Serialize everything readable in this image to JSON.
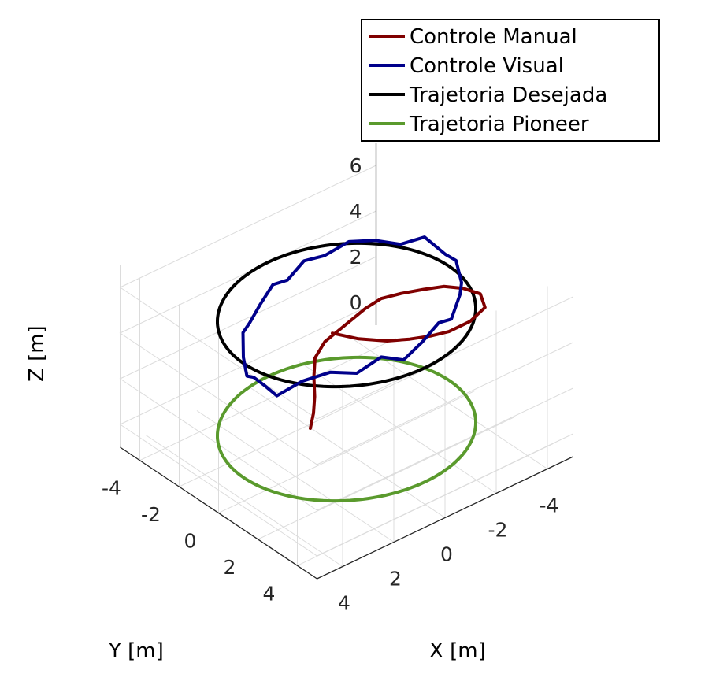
{
  "chart_data": {
    "type": "line3d",
    "title": "",
    "xlabel": "X [m]",
    "ylabel": "Y [m]",
    "zlabel": "Z [m]",
    "x_ticks": [
      "-4",
      "-2",
      "0",
      "2",
      "4"
    ],
    "y_ticks": [
      "-4",
      "-2",
      "0",
      "2",
      "4"
    ],
    "z_ticks": [
      "0",
      "2",
      "4",
      "6"
    ],
    "xlim": [
      -5,
      5
    ],
    "ylim": [
      -5,
      5
    ],
    "zlim": [
      -1,
      7
    ],
    "grid": true,
    "legend_position": "top-right",
    "series": [
      {
        "name": "Controle Manual",
        "color": "#800000",
        "x": [
          0.8,
          0.6,
          0.4,
          0.2,
          0.0,
          -0.3,
          -0.6,
          -0.9,
          -1.2,
          -1.5,
          -1.9,
          -2.4,
          -2.8,
          -3.1,
          -3.3,
          -3.1,
          -2.6,
          -2.0,
          -1.5,
          -1.0,
          -0.5,
          0.0,
          0.3,
          0.4
        ],
        "y": [
          -0.8,
          -0.9,
          -1.1,
          -1.4,
          -1.6,
          -1.5,
          -1.2,
          -0.9,
          -0.6,
          -0.2,
          0.3,
          0.8,
          1.3,
          1.9,
          2.5,
          3.0,
          2.9,
          2.6,
          2.3,
          1.9,
          1.4,
          0.6,
          0.0,
          -0.2
        ],
        "z": [
          0.0,
          0.5,
          1.0,
          1.6,
          2.2,
          2.8,
          3.3,
          3.8,
          4.3,
          4.8,
          5.1,
          5.3,
          5.5,
          5.6,
          5.6,
          5.4,
          5.0,
          4.7,
          4.6,
          4.5,
          4.4,
          4.3,
          4.3,
          4.3
        ]
      },
      {
        "name": "Controle Visual",
        "color": "#00008b",
        "x": [
          3.8,
          3.2,
          2.4,
          1.6,
          0.8,
          0.0,
          -0.8,
          -1.6,
          -2.4,
          -3.2,
          -3.8,
          -4.2,
          -4.4,
          -4.2,
          -3.8,
          -3.2,
          -2.4,
          -1.6,
          -0.8,
          0.0,
          0.8,
          1.6,
          2.4,
          3.2,
          3.8,
          4.2,
          4.4,
          4.2,
          3.8
        ],
        "y": [
          1.4,
          1.9,
          2.3,
          2.6,
          2.8,
          2.9,
          2.8,
          2.6,
          2.2,
          1.6,
          0.9,
          0.1,
          -0.7,
          -1.5,
          -2.2,
          -2.7,
          -3.0,
          -3.2,
          -3.2,
          -3.0,
          -2.7,
          -2.3,
          -1.8,
          -1.1,
          -0.3,
          0.4,
          1.0,
          1.3,
          1.4
        ],
        "z": [
          4.3,
          4.9,
          5.1,
          4.8,
          5.2,
          4.7,
          5.0,
          5.3,
          4.8,
          5.1,
          4.9,
          5.2,
          4.9,
          5.3,
          4.8,
          5.0,
          5.2,
          4.9,
          5.1,
          4.8,
          5.2,
          5.0,
          4.9,
          5.3,
          5.0,
          4.8,
          5.2,
          4.9,
          4.3
        ]
      },
      {
        "name": "Trajetoria Desejada",
        "color": "#000000",
        "shape": "circle",
        "center": [
          0,
          0
        ],
        "radius": 4,
        "z": 5
      },
      {
        "name": "Trajetoria Pioneer",
        "color": "#5a9a2d",
        "shape": "circle",
        "center": [
          0,
          0
        ],
        "radius": 4,
        "z": 0
      }
    ]
  }
}
